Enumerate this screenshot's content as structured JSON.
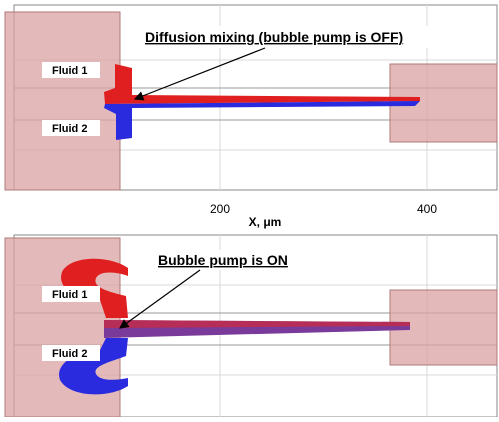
{
  "panels": [
    {
      "title": "Diffusion mixing (bubble pump is OFF)",
      "labels": [
        "Fluid 1",
        "Fluid 2"
      ]
    },
    {
      "title": "Bubble pump is ON",
      "labels": [
        "Fluid 1",
        "Fluid 2"
      ]
    }
  ],
  "x_axis": {
    "ticks": [
      "200",
      "400"
    ],
    "label": "X, μm"
  }
}
